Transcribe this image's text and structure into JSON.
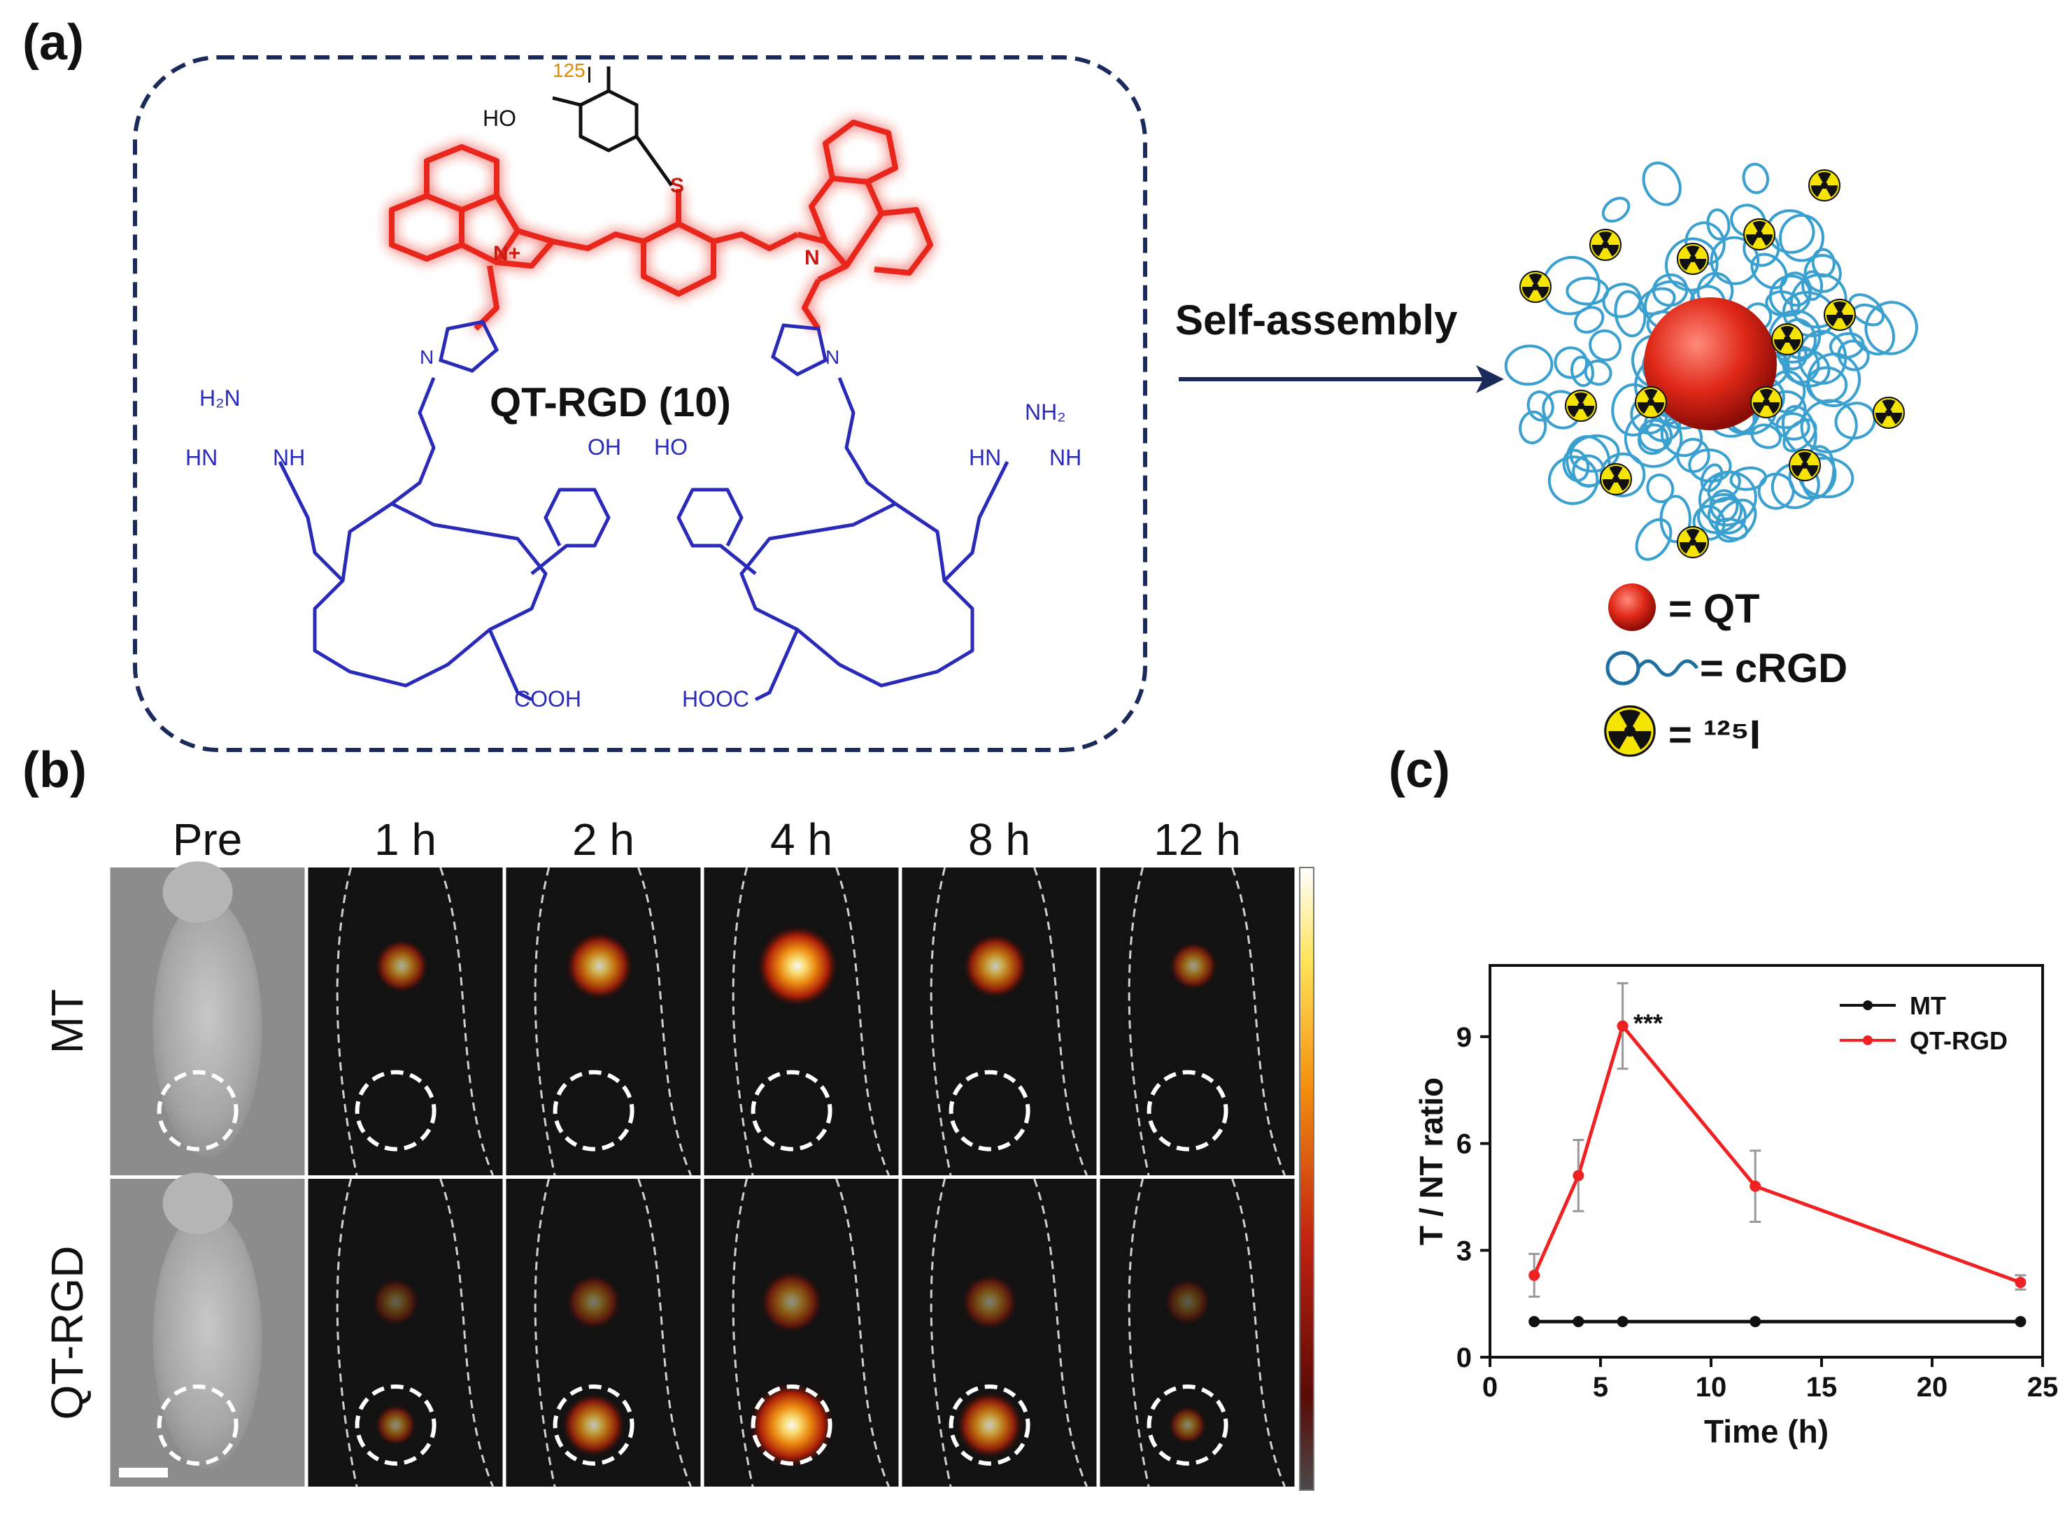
{
  "figure": {
    "panel_a": {
      "letter": "(a)",
      "compound_label": "QT-RGD (10)",
      "arrow_label": "Self-assembly",
      "legend": [
        {
          "symbol": "red-sphere",
          "text": "= QT"
        },
        {
          "symbol": "coil",
          "text": "= cRGD"
        },
        {
          "symbol": "radiation",
          "text": "= ¹²⁵I"
        }
      ],
      "colors": {
        "fluorophore": "#e8261c",
        "peptide": "#2a2ab8",
        "iodine": "#e08a00",
        "frame": "#1a2a5a",
        "coil": "#3aa0d0"
      }
    },
    "panel_b": {
      "letter": "(b)",
      "columns": [
        "Pre",
        "1 h",
        "2 h",
        "4 h",
        "8 h",
        "12 h"
      ],
      "rows": [
        "MT",
        "QT-RGD"
      ],
      "intensity": {
        "MT": [
          0,
          0.45,
          0.7,
          0.95,
          0.65,
          0.35
        ],
        "QT-RGD": [
          0,
          0.25,
          0.6,
          0.95,
          0.65,
          0.2
        ]
      }
    },
    "panel_c": {
      "letter": "(c)",
      "significance": "***"
    }
  },
  "chart_data": {
    "type": "line",
    "xlabel": "Time (h)",
    "ylabel": "T / NT ratio",
    "xlim": [
      0,
      25
    ],
    "ylim": [
      0,
      11
    ],
    "xticks": [
      0,
      5,
      10,
      15,
      20,
      25
    ],
    "yticks": [
      0,
      3,
      6,
      9
    ],
    "legend_position": "top-right",
    "series": [
      {
        "name": "MT",
        "color": "#111111",
        "x": [
          2,
          4,
          6,
          12,
          24
        ],
        "y": [
          1.0,
          1.0,
          1.0,
          1.0,
          1.0
        ],
        "err": [
          0,
          0,
          0,
          0,
          0
        ]
      },
      {
        "name": "QT-RGD",
        "color": "#ee2222",
        "x": [
          2,
          4,
          6,
          12,
          24
        ],
        "y": [
          2.3,
          5.1,
          9.3,
          4.8,
          2.1
        ],
        "err": [
          0.6,
          1.0,
          1.2,
          1.0,
          0.2
        ]
      }
    ]
  }
}
